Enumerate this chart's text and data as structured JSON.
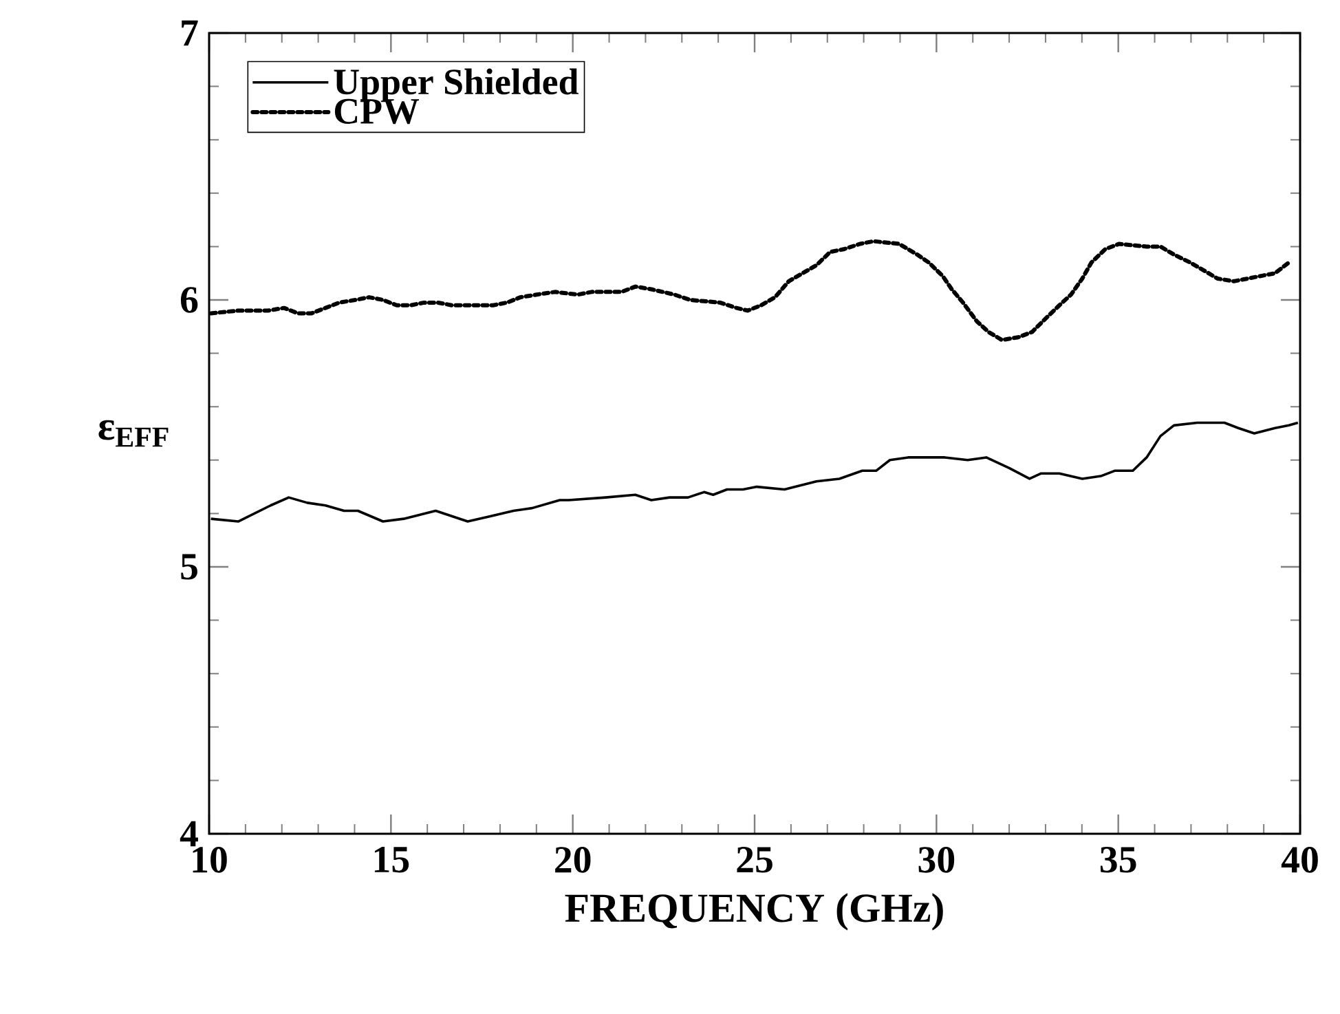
{
  "chart_data": {
    "type": "line",
    "xlabel": "FREQUENCY (GHz)",
    "ylabel": "ε$_{EFF}$",
    "xlim": [
      10,
      40
    ],
    "ylim": [
      4,
      7
    ],
    "xticks": [
      10,
      15,
      20,
      25,
      30,
      35,
      40
    ],
    "yticks": [
      4,
      5,
      6,
      7
    ],
    "legend": "top left",
    "series": [
      {
        "name": "Upper Shielded",
        "color": "#000000",
        "line_style": "solid",
        "x": [
          10.05,
          10.8,
          11.69,
          12.19,
          12.7,
          13.2,
          13.71,
          14.09,
          14.78,
          15.35,
          16.23,
          17.11,
          17.75,
          18.37,
          18.88,
          19.64,
          19.89,
          20.9,
          21.72,
          22.16,
          22.66,
          23.17,
          23.61,
          23.86,
          24.24,
          24.68,
          25.06,
          25.82,
          26.7,
          27.33,
          27.96,
          28.34,
          28.72,
          29.22,
          30.23,
          30.86,
          31.37,
          32.0,
          32.56,
          32.88,
          33.38,
          34.01,
          34.52,
          34.9,
          35.4,
          35.78,
          36.16,
          36.53,
          37.17,
          37.92,
          38.3,
          38.74,
          39.31,
          39.69,
          39.94
        ],
        "values": [
          5.18,
          5.17,
          5.23,
          5.26,
          5.24,
          5.23,
          5.21,
          5.21,
          5.17,
          5.18,
          5.21,
          5.17,
          5.19,
          5.21,
          5.22,
          5.25,
          5.25,
          5.26,
          5.27,
          5.25,
          5.26,
          5.26,
          5.28,
          5.27,
          5.29,
          5.29,
          5.3,
          5.29,
          5.32,
          5.33,
          5.36,
          5.36,
          5.4,
          5.41,
          5.41,
          5.4,
          5.41,
          5.37,
          5.33,
          5.35,
          5.35,
          5.33,
          5.34,
          5.36,
          5.36,
          5.41,
          5.49,
          5.53,
          5.54,
          5.54,
          5.52,
          5.5,
          5.52,
          5.53,
          5.54
        ]
      },
      {
        "name": "CPW",
        "color": "#000000",
        "line_style": "dotted",
        "x": [
          10.05,
          10.8,
          11.62,
          12.06,
          12.44,
          12.82,
          13.2,
          13.58,
          14.02,
          14.4,
          14.78,
          15.16,
          15.54,
          15.91,
          16.29,
          16.67,
          17.11,
          17.81,
          18.19,
          18.56,
          19.01,
          19.51,
          20.14,
          20.52,
          21.34,
          21.72,
          22.16,
          22.79,
          23.23,
          24.05,
          24.5,
          24.81,
          25.18,
          25.56,
          25.94,
          26.32,
          26.7,
          27.08,
          27.45,
          27.9,
          28.27,
          28.97,
          29.47,
          29.79,
          30.17,
          30.42,
          30.73,
          31.11,
          31.43,
          31.8,
          32.25,
          32.63,
          33.0,
          33.38,
          33.7,
          34.01,
          34.26,
          34.64,
          35.02,
          35.78,
          36.16,
          36.53,
          36.98,
          37.36,
          37.73,
          38.18,
          38.56,
          38.93,
          39.31,
          39.69
        ],
        "values": [
          5.95,
          5.96,
          5.96,
          5.97,
          5.95,
          5.95,
          5.97,
          5.99,
          6.0,
          6.01,
          6.0,
          5.98,
          5.98,
          5.99,
          5.99,
          5.98,
          5.98,
          5.98,
          5.99,
          6.01,
          6.02,
          6.03,
          6.02,
          6.03,
          6.03,
          6.05,
          6.04,
          6.02,
          6.0,
          5.99,
          5.97,
          5.96,
          5.98,
          6.01,
          6.07,
          6.1,
          6.13,
          6.18,
          6.19,
          6.21,
          6.22,
          6.21,
          6.17,
          6.14,
          6.09,
          6.04,
          5.99,
          5.92,
          5.88,
          5.85,
          5.86,
          5.88,
          5.93,
          5.98,
          6.02,
          6.08,
          6.14,
          6.19,
          6.21,
          6.2,
          6.2,
          6.17,
          6.14,
          6.11,
          6.08,
          6.07,
          6.08,
          6.09,
          6.1,
          6.14
        ]
      }
    ]
  }
}
